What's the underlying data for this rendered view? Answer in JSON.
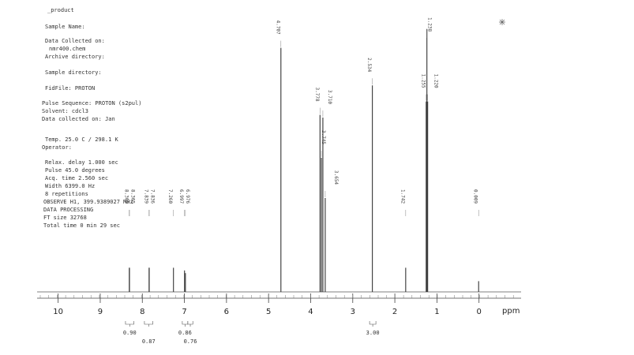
{
  "chart_data": {
    "type": "stick",
    "header_lines": [
      "_product",
      "Sample Name:",
      "Data Collected on:",
      "nmr400.chem",
      "Archive directory:",
      "Sample directory:",
      "FidFile: PROTON",
      "Pulse Sequence: PROTON (s2pul)",
      "Solvent: cdcl3",
      "Data collected on: Jan",
      "Temp. 25.0 C / 298.1 K",
      "Operator:",
      "Relax. delay 1.000 sec",
      "Pulse 45.0 degrees",
      "Acq. time 2.560 sec",
      "Width 6399.0 Hz",
      "8 repetitions",
      "OBSERVE   H1, 399.9389027 MHz",
      "DATA PROCESSING",
      "FT size 32768",
      "Total time 0 min 29 sec"
    ],
    "x": [
      8.309,
      8.305,
      7.839,
      7.836,
      7.26,
      6.997,
      6.976,
      4.707,
      3.778,
      3.745,
      3.71,
      3.654,
      2.534,
      1.742,
      1.255,
      1.238,
      1.22,
      0.009
    ],
    "peak_labels": [
      "8.309",
      "8.305",
      "7.839",
      "7.836",
      "7.260",
      "6.997",
      "6.976",
      "4.707",
      "3.778",
      "3.745",
      "3.710",
      "3.654",
      "2.534",
      "1.742",
      "1.255",
      "1.238",
      "1.220",
      "0.009"
    ],
    "values": [
      9,
      9,
      9,
      9,
      9,
      8,
      7,
      91,
      66,
      50,
      65,
      35,
      77,
      9,
      71,
      98,
      71,
      4
    ],
    "color": "#333333",
    "xlim": [
      10.5,
      -1
    ],
    "ylim": [
      0,
      100
    ],
    "xticks": [
      10,
      9,
      8,
      7,
      6,
      5,
      4,
      3,
      2,
      1,
      0
    ],
    "xlabel": "ppm",
    "integrals": [
      {
        "label": "0.90",
        "value": 0.9,
        "from": 8.4,
        "to": 8.2
      },
      {
        "label": "0.87",
        "value": 0.87,
        "from": 7.95,
        "to": 7.75
      },
      {
        "label": "0.86",
        "value": 0.86,
        "from": 7.05,
        "to": 6.92
      },
      {
        "label": "0.76",
        "value": 0.76,
        "from": 6.92,
        "to": 6.8
      },
      {
        "label": "3.00",
        "value": 3,
        "from": 2.6,
        "to": 2.45
      }
    ]
  }
}
